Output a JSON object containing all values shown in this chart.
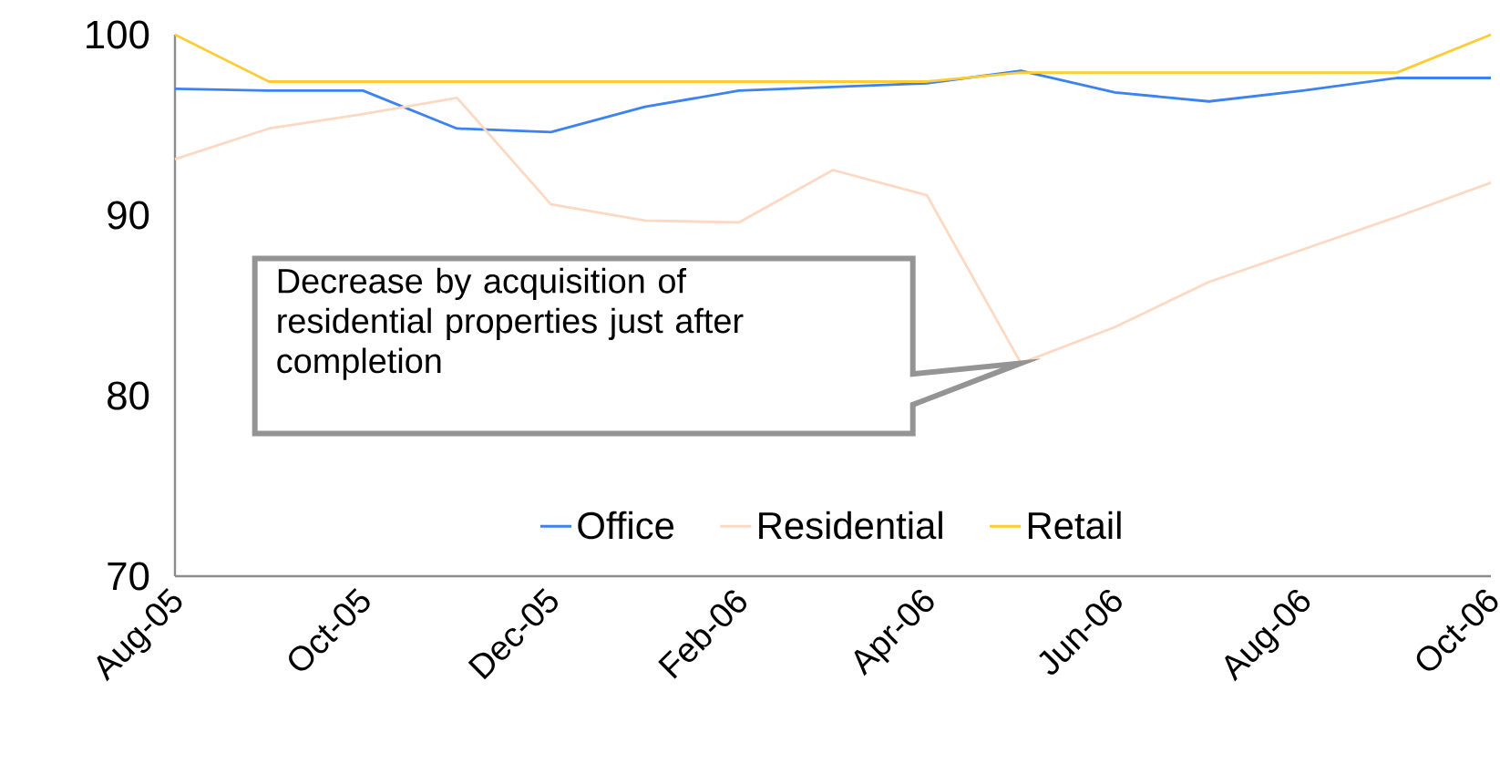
{
  "chart_data": {
    "type": "line",
    "x": [
      "2005-08",
      "2005-09",
      "2005-10",
      "2005-11",
      "2005-12",
      "2006-01",
      "2006-02",
      "2006-03",
      "2006-04",
      "2006-05",
      "2006-06",
      "2006-07",
      "2006-08",
      "2006-09",
      "2006-10"
    ],
    "xlim": [
      "2005-08",
      "2006-10"
    ],
    "xticks": [
      {
        "value": "2005-08",
        "label": "Aug-05"
      },
      {
        "value": "2005-10",
        "label": "Oct-05"
      },
      {
        "value": "2005-12",
        "label": "Dec-05"
      },
      {
        "value": "2006-02",
        "label": "Feb-06"
      },
      {
        "value": "2006-04",
        "label": "Apr-06"
      },
      {
        "value": "2006-06",
        "label": "Jun-06"
      },
      {
        "value": "2006-08",
        "label": "Aug-06"
      },
      {
        "value": "2006-10",
        "label": "Oct-06"
      }
    ],
    "ylim": [
      70,
      100
    ],
    "yticks": [
      70,
      80,
      90,
      100
    ],
    "series": [
      {
        "name": "Office",
        "color": "#3c82f0",
        "values": [
          97.0,
          96.9,
          96.9,
          94.8,
          94.6,
          96.0,
          96.9,
          97.1,
          97.3,
          98.0,
          96.8,
          96.3,
          96.9,
          97.6,
          97.6
        ]
      },
      {
        "name": "Residential",
        "color": "#fdd9c4",
        "values": [
          93.1,
          94.8,
          95.6,
          96.5,
          90.6,
          89.7,
          89.6,
          92.5,
          91.1,
          81.8,
          83.8,
          86.3,
          88.1,
          89.9,
          91.8
        ]
      },
      {
        "name": "Retail",
        "color": "#ffcc33",
        "values": [
          100,
          97.4,
          97.4,
          97.4,
          97.4,
          97.4,
          97.4,
          97.4,
          97.4,
          97.9,
          97.9,
          97.9,
          97.9,
          97.9,
          100
        ]
      }
    ],
    "annotations": [
      "Decrease by acquisition of residential properties just after completion"
    ],
    "legend": "bottom",
    "grid": false,
    "marker": "none",
    "line_style": "solid"
  }
}
